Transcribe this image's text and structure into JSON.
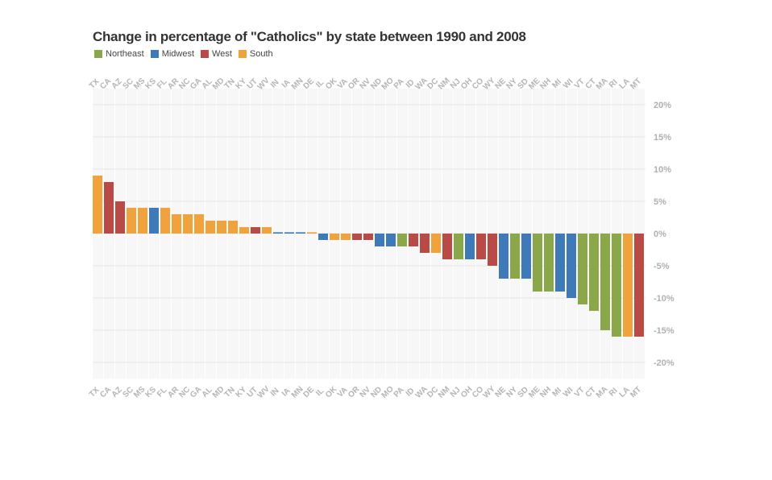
{
  "chart_data": {
    "type": "bar",
    "title": "Change in percentage of \"Catholics\" by state between 1990 and 2008",
    "legend": {
      "placement": "top-left",
      "items": [
        {
          "name": "Northeast",
          "color": "#8aa84a"
        },
        {
          "name": "Midwest",
          "color": "#3e7ab7"
        },
        {
          "name": "West",
          "color": "#b94a46"
        },
        {
          "name": "South",
          "color": "#f0a23c"
        }
      ]
    },
    "ylim": [
      -20,
      20
    ],
    "yticks": [
      20,
      15,
      10,
      5,
      0,
      -5,
      -10,
      -15,
      -20
    ],
    "ytick_labels": [
      "20%",
      "15%",
      "10%",
      "5%",
      "0%",
      "-5%",
      "-10%",
      "-15%",
      "-20%"
    ],
    "grid": true,
    "categories": [
      "TX",
      "CA",
      "AZ",
      "SC",
      "MS",
      "KS",
      "FL",
      "AR",
      "NC",
      "GA",
      "AL",
      "MD",
      "TN",
      "KY",
      "UT",
      "WV",
      "IN",
      "IA",
      "MN",
      "DE",
      "IL",
      "OK",
      "VA",
      "OR",
      "NV",
      "ND",
      "MO",
      "PA",
      "ID",
      "WA",
      "DC",
      "NM",
      "NJ",
      "OH",
      "CO",
      "WY",
      "NE",
      "NY",
      "SD",
      "ME",
      "NH",
      "MI",
      "WI",
      "VT",
      "CT",
      "MA",
      "RI",
      "LA",
      "MT"
    ],
    "regions": [
      "South",
      "West",
      "West",
      "South",
      "South",
      "Midwest",
      "South",
      "South",
      "South",
      "South",
      "South",
      "South",
      "South",
      "South",
      "West",
      "South",
      "Midwest",
      "Midwest",
      "Midwest",
      "South",
      "Midwest",
      "South",
      "South",
      "West",
      "West",
      "Midwest",
      "Midwest",
      "Northeast",
      "West",
      "West",
      "South",
      "West",
      "Northeast",
      "Midwest",
      "West",
      "West",
      "Midwest",
      "Northeast",
      "Midwest",
      "Northeast",
      "Northeast",
      "Midwest",
      "Midwest",
      "Northeast",
      "Northeast",
      "Northeast",
      "Northeast",
      "South",
      "West"
    ],
    "values": [
      9,
      8,
      5,
      4,
      4,
      4,
      4,
      3,
      3,
      3,
      2,
      2,
      2,
      1,
      1,
      1,
      0.2,
      0.2,
      0.2,
      0.2,
      -1,
      -1,
      -1,
      -1,
      -1,
      -2,
      -2,
      -2,
      -2,
      -3,
      -3,
      -4,
      -4,
      -4,
      -4,
      -5,
      -7,
      -7,
      -7,
      -9,
      -9,
      -9,
      -10,
      -11,
      -12,
      -15,
      -16,
      -16,
      -16
    ]
  }
}
